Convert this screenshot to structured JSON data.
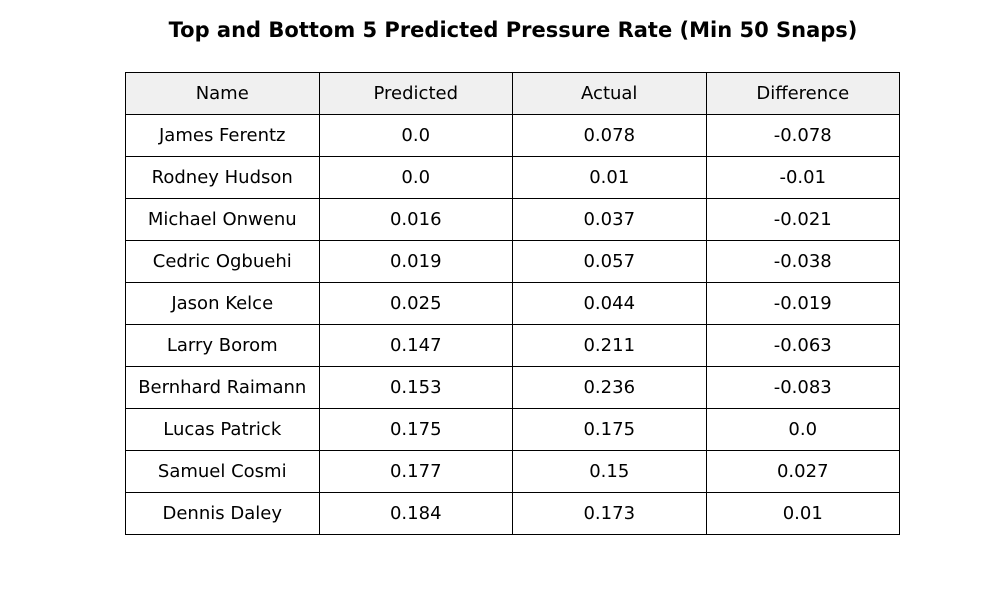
{
  "chart_data": {
    "type": "table",
    "title": "Top and Bottom 5 Predicted Pressure Rate (Min 50 Snaps)",
    "columns": [
      "Name",
      "Predicted",
      "Actual",
      "Difference"
    ],
    "rows": [
      [
        "James Ferentz",
        "0.0",
        "0.078",
        "-0.078"
      ],
      [
        "Rodney Hudson",
        "0.0",
        "0.01",
        "-0.01"
      ],
      [
        "Michael Onwenu",
        "0.016",
        "0.037",
        "-0.021"
      ],
      [
        "Cedric Ogbuehi",
        "0.019",
        "0.057",
        "-0.038"
      ],
      [
        "Jason Kelce",
        "0.025",
        "0.044",
        "-0.019"
      ],
      [
        "Larry Borom",
        "0.147",
        "0.211",
        "-0.063"
      ],
      [
        "Bernhard Raimann",
        "0.153",
        "0.236",
        "-0.083"
      ],
      [
        "Lucas Patrick",
        "0.175",
        "0.175",
        "0.0"
      ],
      [
        "Samuel Cosmi",
        "0.177",
        "0.15",
        "0.027"
      ],
      [
        "Dennis Daley",
        "0.184",
        "0.173",
        "0.01"
      ]
    ],
    "header_background": "#f0f0f0",
    "border_color": "#000000"
  }
}
